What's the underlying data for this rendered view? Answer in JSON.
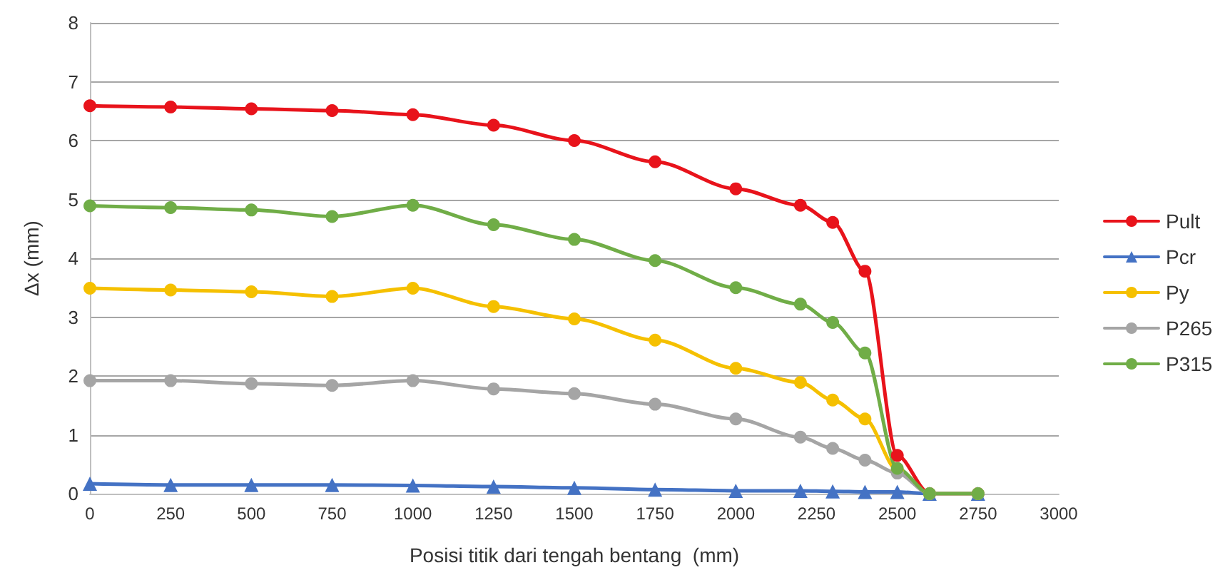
{
  "chart_data": {
    "type": "line",
    "xlabel": "Posisi titik dari tengah bentang  (mm)",
    "ylabel": "Δx (mm)",
    "x": [
      0,
      250,
      500,
      750,
      1000,
      1250,
      1500,
      1750,
      2000,
      2200,
      2300,
      2400,
      2500,
      2600,
      2750
    ],
    "xlim": [
      0,
      3000
    ],
    "xticks": [
      0,
      250,
      500,
      750,
      1000,
      1250,
      1500,
      1750,
      2000,
      2250,
      2500,
      2750,
      3000
    ],
    "ylim": [
      0,
      8
    ],
    "yticks": [
      0,
      1,
      2,
      3,
      4,
      5,
      6,
      7,
      8
    ],
    "grid": "y",
    "legend": "right",
    "line_style": "solid",
    "series": [
      {
        "name": "Pult",
        "color": "#e8131b",
        "marker": "circle",
        "values": [
          6.59,
          6.57,
          6.54,
          6.51,
          6.44,
          6.26,
          6.0,
          5.64,
          5.18,
          4.9,
          4.61,
          3.78,
          0.65,
          0,
          0
        ]
      },
      {
        "name": "Pcr",
        "color": "#4472c4",
        "marker": "triangle",
        "values": [
          0.17,
          0.15,
          0.15,
          0.15,
          0.14,
          0.12,
          0.1,
          0.07,
          0.05,
          0.05,
          0.04,
          0.03,
          0.03,
          0,
          0
        ]
      },
      {
        "name": "Py",
        "color": "#f5c000",
        "marker": "circle",
        "values": [
          3.49,
          3.46,
          3.43,
          3.35,
          3.49,
          3.18,
          2.97,
          2.61,
          2.13,
          1.89,
          1.59,
          1.27,
          0.4,
          0,
          0
        ]
      },
      {
        "name": "P265",
        "color": "#a5a5a5",
        "marker": "circle",
        "values": [
          1.92,
          1.92,
          1.87,
          1.84,
          1.92,
          1.78,
          1.7,
          1.52,
          1.27,
          0.96,
          0.77,
          0.57,
          0.35,
          0,
          0
        ]
      },
      {
        "name": "P315",
        "color": "#70ad47",
        "marker": "circle",
        "values": [
          4.89,
          4.86,
          4.82,
          4.71,
          4.9,
          4.57,
          4.32,
          3.96,
          3.5,
          3.22,
          2.91,
          2.39,
          0.43,
          0,
          0
        ]
      }
    ]
  }
}
